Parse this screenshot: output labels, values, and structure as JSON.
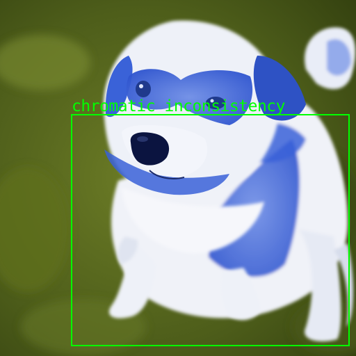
{
  "image": {
    "subject": "dog",
    "colors": {
      "grass_dark": "#3f4d14",
      "grass_light": "#7a8a2e",
      "fur_white": "#eef1f8",
      "fur_blue": "#3a62d8",
      "nose": "#0b1440",
      "box": "#00ff00"
    }
  },
  "annotation": {
    "label": "chromatic inconsistency"
  }
}
